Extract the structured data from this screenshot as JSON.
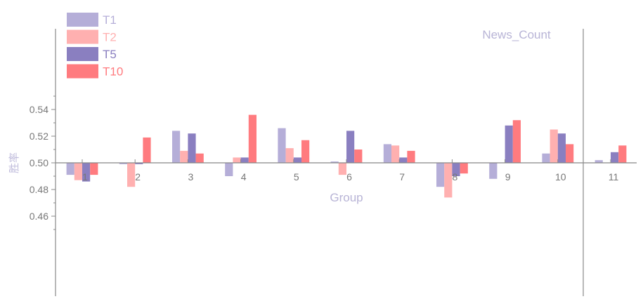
{
  "chart_data": {
    "type": "bar",
    "categories": [
      "1",
      "2",
      "3",
      "4",
      "5",
      "6",
      "7",
      "8",
      "9",
      "10",
      "11"
    ],
    "series": [
      {
        "name": "T1",
        "color": "#b5aed8",
        "values": [
          0.491,
          0.499,
          0.524,
          0.49,
          0.526,
          0.501,
          0.514,
          0.482,
          0.488,
          0.507,
          0.502
        ]
      },
      {
        "name": "T2",
        "color": "#ffb0b0",
        "values": [
          0.487,
          0.482,
          0.509,
          0.504,
          0.511,
          0.491,
          0.513,
          0.474,
          0.5,
          0.525,
          0.5
        ]
      },
      {
        "name": "T5",
        "color": "#8a7fc0",
        "values": [
          0.486,
          0.499,
          0.522,
          0.504,
          0.504,
          0.524,
          0.504,
          0.49,
          0.528,
          0.522,
          0.508
        ]
      },
      {
        "name": "T10",
        "color": "#ff7b7f",
        "values": [
          0.491,
          0.519,
          0.507,
          0.536,
          0.517,
          0.51,
          0.509,
          0.492,
          0.532,
          0.514,
          0.513
        ]
      }
    ],
    "baseline": 0.5,
    "ylim": [
      0.45,
      0.55
    ],
    "yticks": [
      "0.46",
      "0.48",
      "0.50",
      "0.52",
      "0.54"
    ],
    "xlabel": "Group",
    "ylabel": "胜率",
    "annotation": "News_Count",
    "legend_position": "top-left",
    "grid": false
  }
}
